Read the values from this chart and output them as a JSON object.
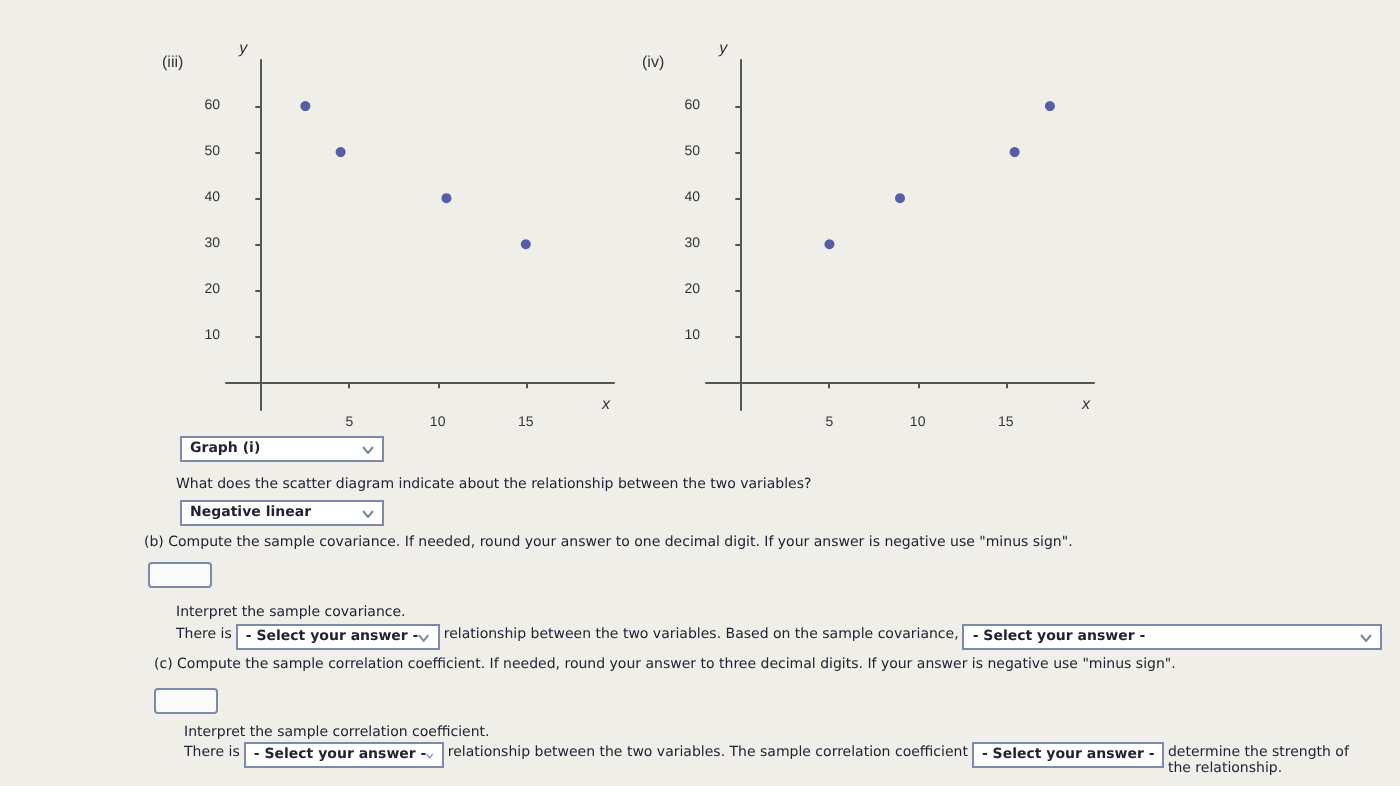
{
  "chart_data": [
    {
      "type": "scatter",
      "title": "(iii)",
      "xlabel": "x",
      "ylabel": "y",
      "x": [
        2.5,
        4.5,
        10.5,
        15
      ],
      "values": [
        60,
        50,
        40,
        30
      ],
      "color": "#2f3a9a",
      "marker": "circle",
      "grid": false,
      "xlim": [
        -2,
        20
      ],
      "ylim": [
        -6,
        70
      ],
      "xticks": [
        5,
        10,
        15
      ],
      "yticks": [
        10,
        20,
        30,
        40,
        50,
        60
      ]
    },
    {
      "type": "scatter",
      "title": "(iv)",
      "xlabel": "x",
      "ylabel": "y",
      "x": [
        5,
        9,
        15.5,
        17.5
      ],
      "values": [
        30,
        40,
        50,
        60
      ],
      "color": "#2f3a9a",
      "marker": "circle",
      "grid": false,
      "xlim": [
        -2,
        20
      ],
      "ylim": [
        -6,
        70
      ],
      "xticks": [
        5,
        10,
        15
      ],
      "yticks": [
        10,
        20,
        30,
        40,
        50,
        60
      ]
    },
    {
      "type": "other",
      "annotations": [
        "Graph (i)",
        "What does the scatter diagram indicate about the relationship between the two variables?",
        "Negative linear",
        "(b) Compute the sample covariance. If needed, round your answer to one decimal digit. If your answer is negative use \"minus sign\".",
        "Interpret the sample covariance.",
        "There is",
        "- Select your answer -",
        "relationship between the two variables. Based on the sample covariance,",
        "- Select your answer -",
        "(c) Compute the sample correlation coefficient. If needed, round your answer to three decimal digits. If your answer is negative use \"minus sign\".",
        "Interpret the sample correlation coefficient.",
        "There is",
        "- Select your answer -",
        "relationship between the two variables. The sample correlation coefficient",
        "- Select your answer -",
        "determine the strength of the relationship."
      ]
    }
  ]
}
